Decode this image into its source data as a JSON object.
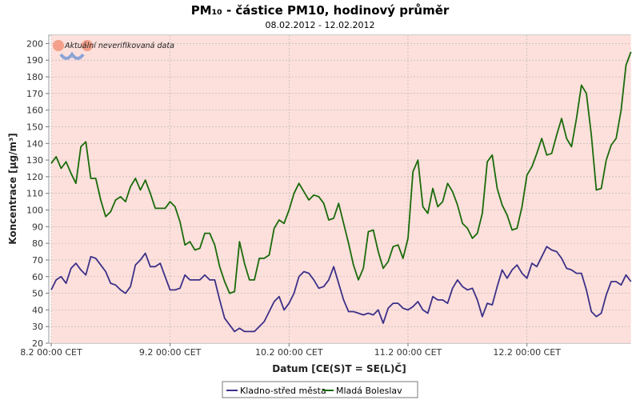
{
  "chart_data": {
    "type": "line",
    "title": "PM₁₀ - částice PM10, hodinový průměr",
    "subtitle": "08.02.2012 - 12.02.2012",
    "xlabel": "Datum [CE(S)T = SE(L)Č]",
    "ylabel": "Koncentrace [µg/m³]",
    "annotation": "Aktuální neverifikovaná data",
    "ylim": [
      20,
      205
    ],
    "yticks": [
      20,
      30,
      40,
      50,
      60,
      70,
      80,
      90,
      100,
      110,
      120,
      130,
      140,
      150,
      160,
      170,
      180,
      190,
      200
    ],
    "xlim_days": [
      -0.02,
      4.87
    ],
    "xticks": [
      {
        "x": 0,
        "label": "8.2 00:00 CET"
      },
      {
        "x": 1,
        "label": "9.2 00:00 CET"
      },
      {
        "x": 2,
        "label": "10.2 00:00 CET"
      },
      {
        "x": 3,
        "label": "11.2 00:00 CET"
      },
      {
        "x": 4,
        "label": "12.2 00:00 CET"
      }
    ],
    "grid": true,
    "background_color": "#fde0dc",
    "legend_position": "bottom",
    "series": [
      {
        "name": "Kladno-střed města",
        "color": "#3c3088",
        "values": [
          52,
          58,
          60,
          56,
          65,
          68,
          64,
          61,
          72,
          71,
          67,
          63,
          56,
          55,
          52,
          50,
          54,
          67,
          70,
          74,
          66,
          66,
          68,
          60,
          52,
          52,
          53,
          61,
          58,
          58,
          58,
          61,
          58,
          58,
          46,
          35,
          31,
          27,
          29,
          27,
          27,
          27,
          30,
          33,
          39,
          45,
          48,
          40,
          44,
          50,
          60,
          63,
          62,
          58,
          53,
          54,
          58,
          66,
          56,
          46,
          39,
          39,
          38,
          37,
          38,
          37,
          40,
          32,
          41,
          44,
          44,
          41,
          40,
          42,
          45,
          40,
          38,
          48,
          46,
          46,
          44,
          53,
          58,
          54,
          52,
          53,
          46,
          36,
          44,
          43,
          54,
          64,
          59,
          64,
          67,
          62,
          59,
          68,
          66,
          72,
          78,
          76,
          75,
          71,
          65,
          64,
          62,
          62,
          52,
          39,
          36,
          38,
          49,
          57,
          57,
          55,
          61,
          57
        ]
      },
      {
        "name": "Mladá Boleslav",
        "color": "#1a6b0a",
        "values": [
          128,
          132,
          125,
          129,
          122,
          116,
          138,
          141,
          119,
          119,
          106,
          96,
          99,
          106,
          108,
          105,
          114,
          119,
          112,
          118,
          110,
          101,
          101,
          101,
          105,
          102,
          93,
          79,
          81,
          76,
          77,
          86,
          86,
          79,
          66,
          57,
          50,
          51,
          81,
          68,
          58,
          58,
          71,
          71,
          73,
          89,
          94,
          92,
          100,
          110,
          116,
          111,
          106,
          109,
          108,
          104,
          94,
          95,
          104,
          92,
          80,
          67,
          58,
          65,
          87,
          88,
          75,
          65,
          69,
          78,
          79,
          71,
          83,
          123,
          130,
          102,
          98,
          113,
          102,
          105,
          116,
          111,
          103,
          92,
          89,
          83,
          86,
          98,
          129,
          133,
          113,
          103,
          97,
          88,
          89,
          102,
          121,
          126,
          134,
          143,
          133,
          134,
          145,
          155,
          143,
          138,
          155,
          175,
          170,
          145,
          112,
          113,
          130,
          139,
          143,
          160,
          187,
          195
        ]
      }
    ]
  },
  "legend": {
    "items": [
      {
        "label": "Kladno-střed města",
        "color": "#3c3088"
      },
      {
        "label": "Mladá Boleslav",
        "color": "#1a6b0a"
      }
    ]
  }
}
